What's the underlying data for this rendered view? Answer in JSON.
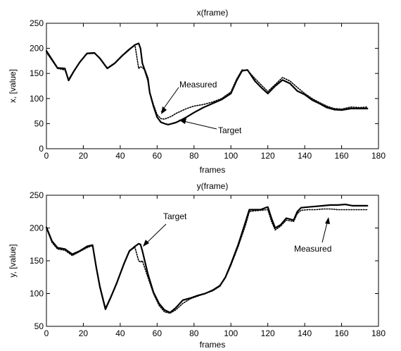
{
  "chart_data": [
    {
      "type": "line",
      "title": "x(frame)",
      "xlabel": "frames",
      "ylabel": "x, [value]",
      "xlim": [
        0,
        180
      ],
      "ylim": [
        0,
        250
      ],
      "xticks": [
        0,
        20,
        40,
        60,
        80,
        100,
        120,
        140,
        160,
        180
      ],
      "yticks": [
        0,
        50,
        100,
        150,
        200,
        250
      ],
      "grid": false,
      "series": [
        {
          "key": "target",
          "style": "solid",
          "color": "#000000",
          "x": [
            0,
            3,
            6,
            10,
            12,
            15,
            18,
            22,
            26,
            29,
            33,
            37,
            41,
            45,
            48,
            50,
            51,
            52,
            53,
            55,
            56,
            58,
            60,
            62,
            64,
            66,
            68,
            70,
            73,
            76,
            80,
            85,
            90,
            95,
            100,
            103,
            106,
            109,
            113,
            117,
            120,
            124,
            128,
            132,
            136,
            140,
            144,
            148,
            152,
            156,
            160,
            165,
            170,
            174
          ],
          "y": [
            195,
            178,
            161,
            160,
            136,
            155,
            172,
            190,
            191,
            180,
            160,
            170,
            185,
            198,
            207,
            210,
            200,
            170,
            160,
            140,
            112,
            85,
            63,
            53,
            50,
            48,
            50,
            52,
            57,
            63,
            72,
            82,
            90,
            98,
            110,
            135,
            155,
            157,
            135,
            120,
            110,
            125,
            137,
            130,
            115,
            108,
            97,
            90,
            82,
            78,
            77,
            80,
            80,
            80
          ]
        },
        {
          "key": "measured",
          "style": "dotted",
          "color": "#000000",
          "x": [
            0,
            3,
            6,
            10,
            12,
            15,
            18,
            22,
            26,
            29,
            33,
            37,
            41,
            45,
            48,
            50,
            51,
            52,
            53,
            55,
            56,
            58,
            60,
            62,
            64,
            66,
            68,
            70,
            73,
            76,
            80,
            85,
            90,
            95,
            100,
            103,
            106,
            109,
            113,
            117,
            120,
            124,
            128,
            132,
            136,
            140,
            144,
            148,
            152,
            156,
            160,
            165,
            170,
            174
          ],
          "y": [
            192,
            176,
            160,
            157,
            138,
            156,
            172,
            189,
            190,
            181,
            161,
            171,
            186,
            199,
            206,
            160,
            163,
            162,
            158,
            135,
            113,
            88,
            68,
            60,
            59,
            62,
            65,
            70,
            75,
            80,
            85,
            88,
            93,
            100,
            113,
            138,
            157,
            156,
            140,
            125,
            114,
            128,
            142,
            135,
            122,
            110,
            100,
            92,
            85,
            80,
            79,
            83,
            82,
            83
          ]
        }
      ],
      "annotations": [
        {
          "text": "Measured",
          "arrow_to": [
            60,
            60
          ]
        },
        {
          "text": "Target",
          "arrow_to": [
            66,
            52
          ]
        }
      ]
    },
    {
      "type": "line",
      "title": "y(frame)",
      "xlabel": "frames",
      "ylabel": "y, [value]",
      "xlim": [
        0,
        180
      ],
      "ylim": [
        50,
        250
      ],
      "xticks": [
        0,
        20,
        40,
        60,
        80,
        100,
        120,
        140,
        160,
        180
      ],
      "yticks": [
        50,
        100,
        150,
        200,
        250
      ],
      "grid": false,
      "series": [
        {
          "key": "target",
          "style": "solid",
          "color": "#000000",
          "x": [
            0,
            3,
            6,
            10,
            14,
            18,
            22,
            25,
            27,
            29,
            32,
            35,
            38,
            42,
            45,
            48,
            50,
            51,
            52,
            55,
            58,
            61,
            64,
            67,
            70,
            74,
            78,
            82,
            86,
            90,
            94,
            97,
            100,
            104,
            108,
            110,
            112,
            116,
            120,
            122,
            124,
            127,
            130,
            134,
            136,
            138,
            142,
            146,
            150,
            154,
            158,
            162,
            166,
            170,
            174
          ],
          "y": [
            201,
            180,
            170,
            168,
            160,
            165,
            172,
            174,
            140,
            110,
            76,
            95,
            115,
            145,
            165,
            172,
            176,
            175,
            165,
            130,
            102,
            85,
            75,
            71,
            78,
            90,
            93,
            97,
            100,
            105,
            112,
            125,
            145,
            175,
            210,
            228,
            228,
            228,
            232,
            215,
            200,
            205,
            215,
            212,
            225,
            231,
            232,
            233,
            234,
            235,
            235,
            236,
            234,
            234,
            234
          ]
        },
        {
          "key": "measured",
          "style": "dotted",
          "color": "#000000",
          "x": [
            0,
            3,
            6,
            10,
            14,
            18,
            22,
            25,
            27,
            29,
            32,
            35,
            38,
            42,
            45,
            48,
            50,
            51,
            52,
            55,
            58,
            61,
            64,
            67,
            70,
            74,
            78,
            82,
            86,
            90,
            94,
            97,
            100,
            104,
            108,
            110,
            112,
            116,
            120,
            122,
            124,
            127,
            130,
            134,
            136,
            138,
            142,
            146,
            150,
            154,
            158,
            162,
            166,
            170,
            174
          ],
          "y": [
            200,
            178,
            168,
            166,
            158,
            164,
            170,
            173,
            142,
            112,
            78,
            96,
            116,
            146,
            166,
            170,
            150,
            148,
            150,
            125,
            100,
            82,
            72,
            70,
            75,
            85,
            92,
            96,
            100,
            104,
            111,
            124,
            143,
            172,
            205,
            225,
            226,
            227,
            228,
            210,
            197,
            203,
            212,
            210,
            222,
            227,
            228,
            228,
            229,
            229,
            228,
            228,
            228,
            228,
            228
          ]
        }
      ],
      "annotations": [
        {
          "text": "Target",
          "arrow_to": [
            51,
            160
          ]
        },
        {
          "text": "Measured",
          "arrow_to": [
            155,
            230
          ]
        }
      ]
    }
  ]
}
